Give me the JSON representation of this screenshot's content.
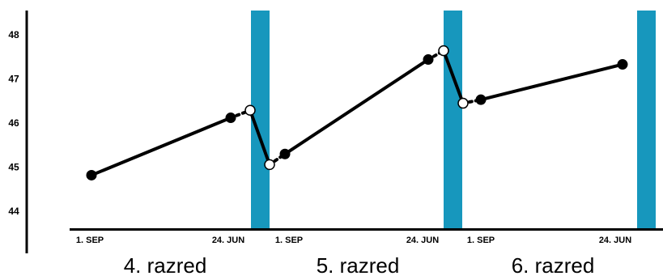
{
  "chart_data": {
    "type": "line",
    "y_ticks": [
      "44",
      "45",
      "46",
      "47",
      "48"
    ],
    "ylim": [
      43.6,
      48.55
    ],
    "grid": false,
    "colors": {
      "summer_band": "#1797bd",
      "line": "#000000",
      "open_marker": "#ffffff"
    },
    "grades": [
      {
        "label": "4. razred",
        "start_label": "1. SEP",
        "end_label": "24. JUN",
        "start_value": 44.82,
        "end_value": 46.12,
        "summer_from": 46.29,
        "summer_to": 45.06
      },
      {
        "label": "5. razred",
        "start_label": "1. SEP",
        "end_label": "24. JUN",
        "start_value": 45.3,
        "end_value": 47.44,
        "summer_from": 47.64,
        "summer_to": 46.45
      },
      {
        "label": "6. razred",
        "start_label": "1. SEP",
        "end_label": "24. JUN",
        "start_value": 46.53,
        "end_value": 47.33
      }
    ]
  }
}
